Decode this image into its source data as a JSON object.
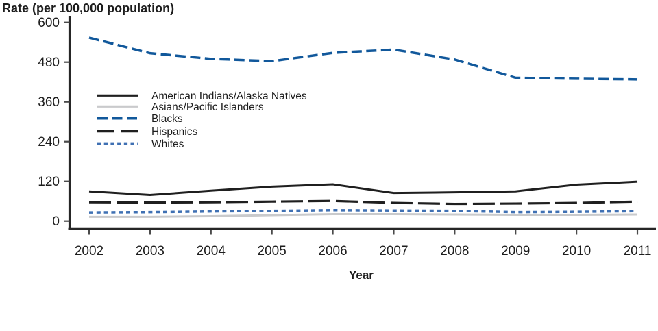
{
  "chart_data": {
    "type": "line",
    "title": "",
    "ylabel": "Rate (per 100,000 population)",
    "xlabel": "Year",
    "x": [
      2002,
      2003,
      2004,
      2005,
      2006,
      2007,
      2008,
      2009,
      2010,
      2011
    ],
    "yticks": [
      0,
      120,
      240,
      360,
      480,
      600
    ],
    "ylim": [
      0,
      600
    ],
    "grid": false,
    "legend_position": "inside-upper-left",
    "axis_color": "#262626",
    "text_color": "#1d1d1d",
    "series": [
      {
        "name": "American Indians/Alaska Natives",
        "color": "#1f1f1f",
        "style": "solid",
        "values": [
          90,
          79,
          92,
          104,
          111,
          85,
          87,
          90,
          110,
          119
        ]
      },
      {
        "name": "Asians/Pacific Islanders",
        "color": "#c9cacc",
        "style": "solid",
        "values": [
          13,
          13,
          15,
          18,
          21,
          21,
          20,
          19,
          19,
          20
        ]
      },
      {
        "name": "Blacks",
        "color": "#11589b",
        "style": "dashed",
        "values": [
          554,
          507,
          490,
          483,
          508,
          518,
          488,
          433,
          430,
          428
        ]
      },
      {
        "name": "Hispanics",
        "color": "#1f1f1f",
        "style": "long-dash",
        "values": [
          57,
          56,
          57,
          59,
          61,
          55,
          52,
          53,
          55,
          59
        ]
      },
      {
        "name": "Whites",
        "color": "#3f70b3",
        "style": "dotted",
        "values": [
          26,
          27,
          29,
          31,
          33,
          32,
          31,
          27,
          28,
          30
        ]
      }
    ]
  }
}
